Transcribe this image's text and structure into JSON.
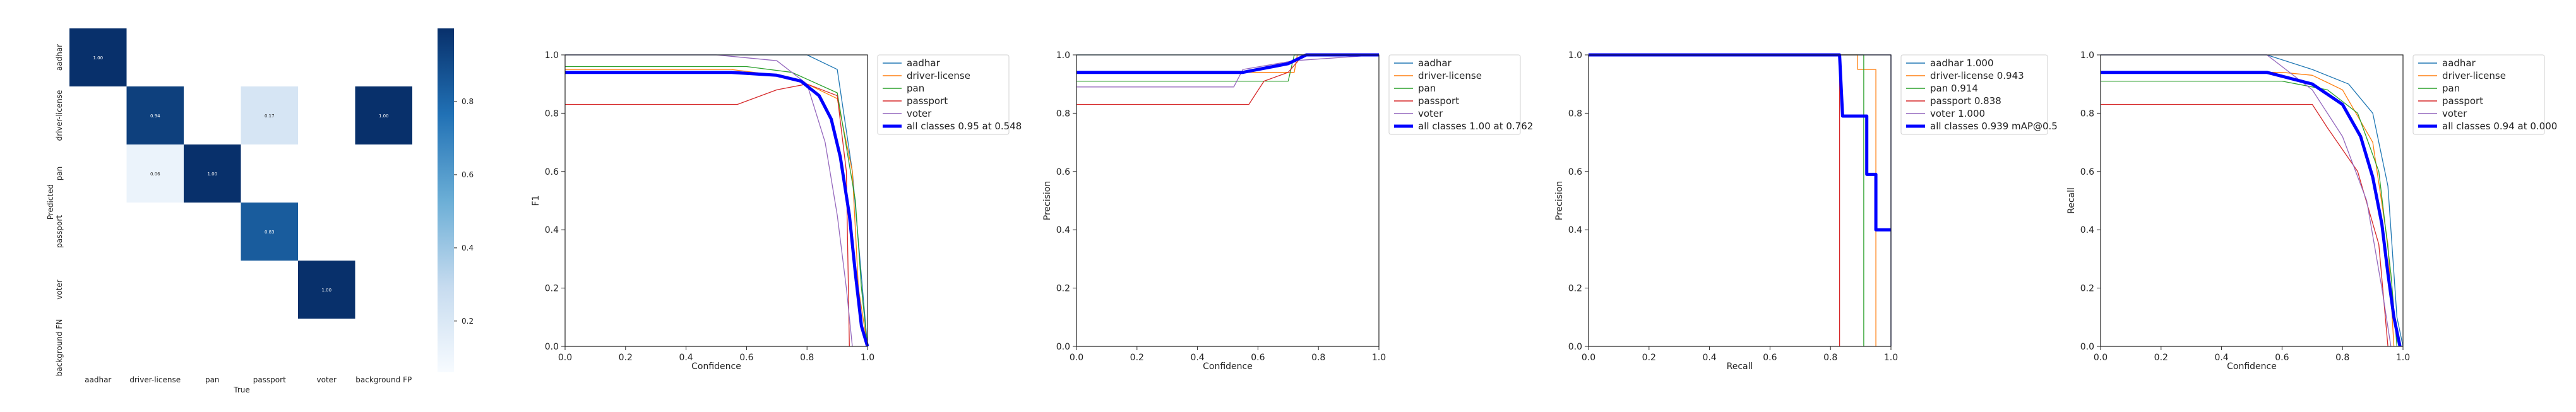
{
  "classes": [
    "aadhar",
    "driver-license",
    "pan",
    "passport",
    "voter"
  ],
  "colors": {
    "aadhar": "#1f77b4",
    "driver-license": "#ff7f0e",
    "pan": "#2ca02c",
    "passport": "#d62728",
    "voter": "#9467bd",
    "all": "#0000ff"
  },
  "chart_data": [
    {
      "type": "heatmap",
      "xlabel": "True",
      "ylabel": "Predicted",
      "x_categories": [
        "aadhar",
        "driver-license",
        "pan",
        "passport",
        "voter",
        "background FP"
      ],
      "y_categories": [
        "aadhar",
        "driver-license",
        "pan",
        "passport",
        "voter",
        "background FN"
      ],
      "colorbar_ticks": [
        "0.2",
        "0.4",
        "0.6",
        "0.8"
      ],
      "cells": [
        {
          "row": 0,
          "col": 0,
          "value": 1.0,
          "label": "1.00"
        },
        {
          "row": 1,
          "col": 1,
          "value": 0.94,
          "label": "0.94"
        },
        {
          "row": 1,
          "col": 3,
          "value": 0.17,
          "label": "0.17"
        },
        {
          "row": 1,
          "col": 5,
          "value": 1.0,
          "label": "1.00"
        },
        {
          "row": 2,
          "col": 1,
          "value": 0.06,
          "label": "0.06"
        },
        {
          "row": 2,
          "col": 2,
          "value": 1.0,
          "label": "1.00"
        },
        {
          "row": 3,
          "col": 3,
          "value": 0.83,
          "label": "0.83"
        },
        {
          "row": 4,
          "col": 4,
          "value": 1.0,
          "label": "1.00"
        }
      ]
    },
    {
      "type": "line",
      "xlabel": "Confidence",
      "ylabel": "F1",
      "xlim": [
        0,
        1
      ],
      "ylim": [
        0,
        1
      ],
      "xticks": [
        "0.0",
        "0.2",
        "0.4",
        "0.6",
        "0.8",
        "1.0"
      ],
      "yticks": [
        "0.0",
        "0.2",
        "0.4",
        "0.6",
        "0.8",
        "1.0"
      ],
      "legend_position": "outside-right",
      "series": [
        {
          "name": "aadhar",
          "x": [
            0,
            0.6,
            0.7,
            0.8,
            0.9,
            0.95,
            1.0
          ],
          "y": [
            1.0,
            1.0,
            1.0,
            1.0,
            0.95,
            0.6,
            0
          ]
        },
        {
          "name": "driver-license",
          "x": [
            0,
            0.55,
            0.7,
            0.8,
            0.9,
            0.95,
            0.97,
            1.0
          ],
          "y": [
            0.95,
            0.95,
            0.93,
            0.9,
            0.85,
            0.6,
            0.2,
            0
          ]
        },
        {
          "name": "pan",
          "x": [
            0,
            0.6,
            0.75,
            0.9,
            0.96,
            0.98,
            1.0
          ],
          "y": [
            0.96,
            0.96,
            0.94,
            0.87,
            0.5,
            0.2,
            0
          ]
        },
        {
          "name": "passport",
          "x": [
            0,
            0.57,
            0.7,
            0.8,
            0.9,
            0.93,
            0.94
          ],
          "y": [
            0.83,
            0.83,
            0.88,
            0.9,
            0.86,
            0.6,
            0
          ]
        },
        {
          "name": "voter",
          "x": [
            0,
            0.5,
            0.7,
            0.8,
            0.86,
            0.9,
            0.93,
            0.95
          ],
          "y": [
            1.0,
            1.0,
            0.98,
            0.9,
            0.7,
            0.45,
            0.2,
            0
          ]
        },
        {
          "name": "all classes 0.95 at 0.548",
          "x": [
            0,
            0.55,
            0.7,
            0.78,
            0.84,
            0.88,
            0.91,
            0.94,
            0.96,
            0.98,
            1.0
          ],
          "y": [
            0.94,
            0.94,
            0.93,
            0.91,
            0.86,
            0.78,
            0.65,
            0.45,
            0.25,
            0.07,
            0
          ],
          "bold": true
        }
      ]
    },
    {
      "type": "line",
      "xlabel": "Confidence",
      "ylabel": "Precision",
      "xlim": [
        0,
        1
      ],
      "ylim": [
        0,
        1
      ],
      "xticks": [
        "0.0",
        "0.2",
        "0.4",
        "0.6",
        "0.8",
        "1.0"
      ],
      "yticks": [
        "0.0",
        "0.2",
        "0.4",
        "0.6",
        "0.8",
        "1.0"
      ],
      "legend_position": "outside-right",
      "series": [
        {
          "name": "aadhar",
          "x": [
            0,
            1.0
          ],
          "y": [
            1.0,
            1.0
          ]
        },
        {
          "name": "driver-license",
          "x": [
            0,
            0.72,
            0.73,
            1.0
          ],
          "y": [
            0.94,
            0.94,
            1.0,
            1.0
          ]
        },
        {
          "name": "pan",
          "x": [
            0,
            0.7,
            0.72,
            1.0
          ],
          "y": [
            0.91,
            0.91,
            1.0,
            1.0
          ]
        },
        {
          "name": "passport",
          "x": [
            0,
            0.57,
            0.62,
            0.7,
            0.75,
            1.0
          ],
          "y": [
            0.83,
            0.83,
            0.91,
            0.94,
            1.0,
            1.0
          ]
        },
        {
          "name": "voter",
          "x": [
            0,
            0.52,
            0.55,
            0.72,
            1.0
          ],
          "y": [
            0.89,
            0.89,
            0.95,
            0.98,
            1.0
          ]
        },
        {
          "name": "all classes 1.00 at 0.762",
          "x": [
            0,
            0.55,
            0.6,
            0.65,
            0.7,
            0.74,
            0.76,
            1.0
          ],
          "y": [
            0.94,
            0.94,
            0.95,
            0.96,
            0.97,
            0.99,
            1.0,
            1.0
          ],
          "bold": true
        }
      ]
    },
    {
      "type": "line",
      "xlabel": "Recall",
      "ylabel": "Precision",
      "xlim": [
        0,
        1
      ],
      "ylim": [
        0,
        1
      ],
      "xticks": [
        "0.0",
        "0.2",
        "0.4",
        "0.6",
        "0.8",
        "1.0"
      ],
      "yticks": [
        "0.0",
        "0.2",
        "0.4",
        "0.6",
        "0.8",
        "1.0"
      ],
      "legend_position": "outside-right",
      "series": [
        {
          "name": "aadhar 1.000",
          "x": [
            0,
            1.0,
            1.0
          ],
          "y": [
            1.0,
            1.0,
            0
          ]
        },
        {
          "name": "driver-license 0.943",
          "x": [
            0,
            0.89,
            0.89,
            0.95,
            0.95
          ],
          "y": [
            1.0,
            1.0,
            0.95,
            0.95,
            0
          ]
        },
        {
          "name": "pan 0.914",
          "x": [
            0,
            0.91,
            0.91
          ],
          "y": [
            1.0,
            1.0,
            0
          ]
        },
        {
          "name": "passport 0.838",
          "x": [
            0,
            0.83,
            0.83
          ],
          "y": [
            1.0,
            1.0,
            0
          ]
        },
        {
          "name": "voter 1.000",
          "x": [
            0,
            1.0,
            1.0
          ],
          "y": [
            1.0,
            1.0,
            0
          ]
        },
        {
          "name": "all classes 0.939 mAP@0.5",
          "x": [
            0,
            0.83,
            0.84,
            0.92,
            0.92,
            0.95,
            0.95,
            1.0
          ],
          "y": [
            1.0,
            1.0,
            0.79,
            0.79,
            0.59,
            0.59,
            0.4,
            0.4
          ],
          "bold": true
        }
      ]
    },
    {
      "type": "line",
      "xlabel": "Confidence",
      "ylabel": "Recall",
      "xlim": [
        0,
        1
      ],
      "ylim": [
        0,
        1
      ],
      "xticks": [
        "0.0",
        "0.2",
        "0.4",
        "0.6",
        "0.8",
        "1.0"
      ],
      "yticks": [
        "0.0",
        "0.2",
        "0.4",
        "0.6",
        "0.8",
        "1.0"
      ],
      "legend_position": "outside-right",
      "series": [
        {
          "name": "aadhar",
          "x": [
            0,
            0.55,
            0.7,
            0.82,
            0.9,
            0.95,
            0.98,
            1.0
          ],
          "y": [
            1.0,
            1.0,
            0.95,
            0.9,
            0.8,
            0.55,
            0.1,
            0
          ]
        },
        {
          "name": "driver-license",
          "x": [
            0,
            0.6,
            0.7,
            0.8,
            0.9,
            0.95,
            0.97
          ],
          "y": [
            0.94,
            0.94,
            0.93,
            0.88,
            0.7,
            0.35,
            0
          ]
        },
        {
          "name": "pan",
          "x": [
            0,
            0.6,
            0.75,
            0.85,
            0.92,
            0.96,
            0.98
          ],
          "y": [
            0.91,
            0.91,
            0.88,
            0.8,
            0.6,
            0.25,
            0
          ]
        },
        {
          "name": "passport",
          "x": [
            0,
            0.7,
            0.75,
            0.85,
            0.92,
            0.95
          ],
          "y": [
            0.83,
            0.83,
            0.75,
            0.6,
            0.35,
            0
          ]
        },
        {
          "name": "voter",
          "x": [
            0,
            0.55,
            0.7,
            0.8,
            0.88,
            0.93,
            0.96
          ],
          "y": [
            1.0,
            1.0,
            0.88,
            0.72,
            0.5,
            0.2,
            0
          ]
        },
        {
          "name": "all classes 0.94 at 0.000",
          "x": [
            0,
            0.55,
            0.7,
            0.8,
            0.86,
            0.9,
            0.93,
            0.95,
            0.97,
            0.99
          ],
          "y": [
            0.94,
            0.94,
            0.9,
            0.83,
            0.72,
            0.58,
            0.42,
            0.25,
            0.1,
            0
          ],
          "bold": true
        }
      ]
    }
  ]
}
